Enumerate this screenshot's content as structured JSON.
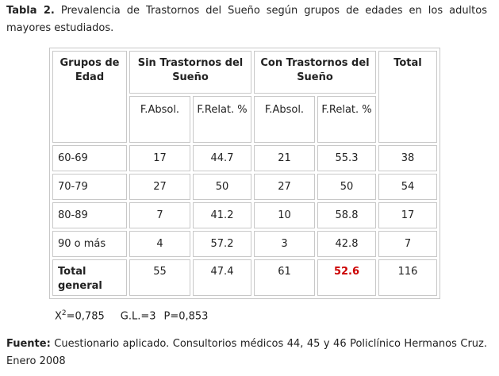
{
  "caption": {
    "label": "Tabla 2.",
    "text": " Prevalencia de Trastornos del Sueño  según grupos de edades en los adultos mayores estudiados."
  },
  "table": {
    "headers": {
      "age_group": "Grupos de Edad",
      "without": "Sin Trastornos del Sueño",
      "with": "Con Trastornos del Sueño",
      "total": "Total"
    },
    "subheaders": {
      "without_abs": "F.Absol.",
      "without_rel": "F.Relat. %",
      "with_abs": "F.Absol.",
      "with_rel": "F.Relat. %"
    },
    "rows": [
      {
        "group": "60-69",
        "without_abs": "17",
        "without_rel": "44.7",
        "with_abs": "21",
        "with_rel": "55.3",
        "total": "38"
      },
      {
        "group": "70-79",
        "without_abs": "27",
        "without_rel": "50",
        "with_abs": "27",
        "with_rel": "50",
        "total": "54"
      },
      {
        "group": "80-89",
        "without_abs": "7",
        "without_rel": "41.2",
        "with_abs": "10",
        "with_rel": "58.8",
        "total": "17"
      },
      {
        "group": "90 o más",
        "without_abs": "4",
        "without_rel": "57.2",
        "with_abs": "3",
        "with_rel": "42.8",
        "total": "7"
      }
    ],
    "total_row": {
      "group": "Total general",
      "without_abs": "55",
      "without_rel": "47.4",
      "with_abs": "61",
      "with_rel": "52.6",
      "total": "116"
    }
  },
  "stats": {
    "chi_base": "X",
    "chi_exp": "2",
    "chi_value": "=0,785",
    "gl": "G.L.=3",
    "p": "P=0,853"
  },
  "source": {
    "label": "Fuente:",
    "text": " Cuestionario aplicado. Consultorios médicos 44, 45 y 46  Policlínico Hermanos Cruz. Enero 2008"
  },
  "colors": {
    "highlight": "#cc0000",
    "border": "#c8c8c8"
  }
}
